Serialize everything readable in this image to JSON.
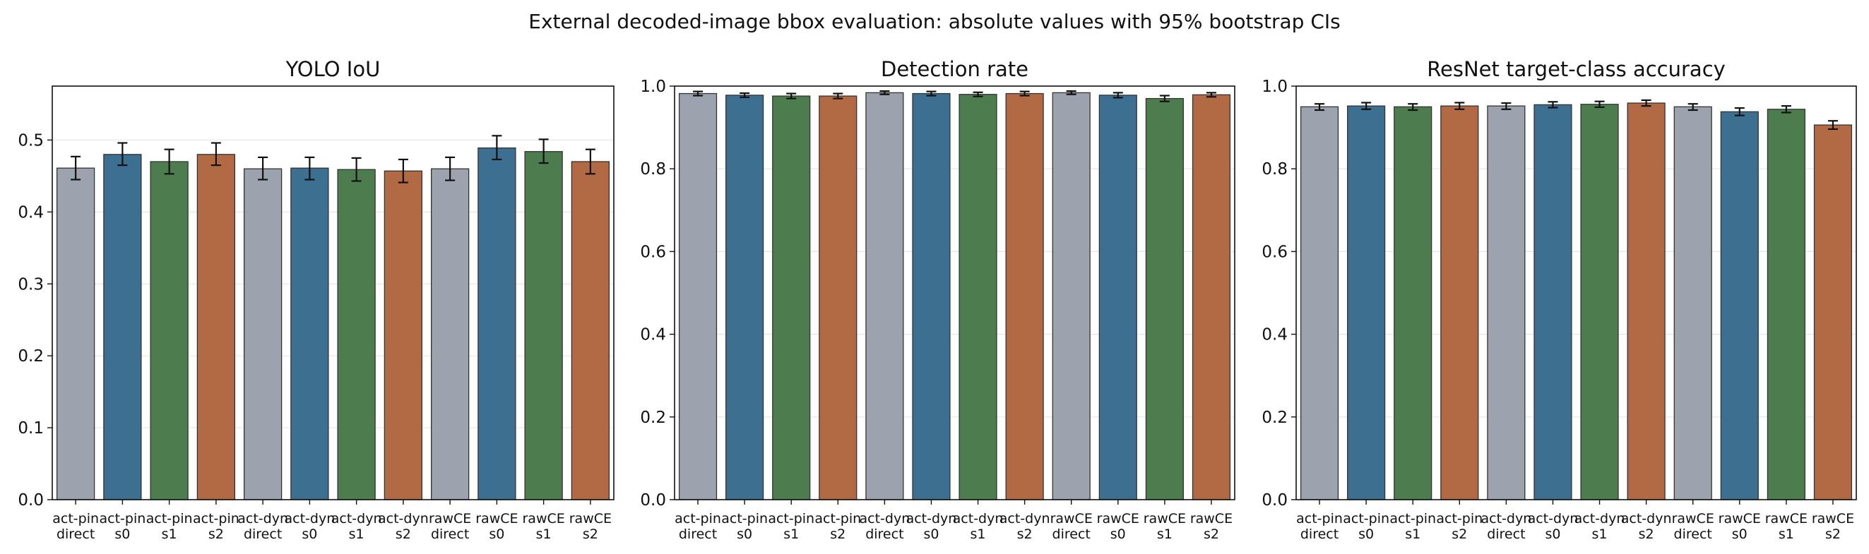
{
  "figure": {
    "suptitle": "External decoded-image bbox evaluation: absolute values with 95% bootstrap CIs"
  },
  "chart_data": [
    {
      "type": "bar",
      "title": "YOLO IoU",
      "xlabel": "",
      "ylabel": "",
      "categories": [
        "act-pin direct",
        "act-pin s0",
        "act-pin s1",
        "act-pin s2",
        "act-dyn direct",
        "act-dyn s0",
        "act-dyn s1",
        "act-dyn s2",
        "rawCE direct",
        "rawCE s0",
        "rawCE s1",
        "rawCE s2"
      ],
      "tick_labels": [
        [
          "act-pin",
          "direct"
        ],
        [
          "act-pin",
          "s0"
        ],
        [
          "act-pin",
          "s1"
        ],
        [
          "act-pin",
          "s2"
        ],
        [
          "act-dyn",
          "direct"
        ],
        [
          "act-dyn",
          "s0"
        ],
        [
          "act-dyn",
          "s1"
        ],
        [
          "act-dyn",
          "s2"
        ],
        [
          "rawCE",
          "direct"
        ],
        [
          "rawCE",
          "s0"
        ],
        [
          "rawCE",
          "s1"
        ],
        [
          "rawCE",
          "s2"
        ]
      ],
      "values": [
        0.461,
        0.48,
        0.47,
        0.48,
        0.46,
        0.461,
        0.459,
        0.457,
        0.46,
        0.489,
        0.484,
        0.47
      ],
      "ci_low": [
        0.445,
        0.465,
        0.453,
        0.465,
        0.445,
        0.445,
        0.443,
        0.441,
        0.444,
        0.473,
        0.468,
        0.453
      ],
      "ci_high": [
        0.477,
        0.496,
        0.487,
        0.496,
        0.476,
        0.476,
        0.475,
        0.473,
        0.476,
        0.506,
        0.501,
        0.487
      ],
      "colors": [
        "#9ca3ae",
        "#3d6f91",
        "#4d7d4f",
        "#b26a45",
        "#9ca3ae",
        "#3d6f91",
        "#4d7d4f",
        "#b26a45",
        "#9ca3ae",
        "#3d6f91",
        "#4d7d4f",
        "#b26a45"
      ],
      "ylim": [
        0,
        0.575
      ],
      "yticks": [
        0.0,
        0.1,
        0.2,
        0.3,
        0.4,
        0.5
      ],
      "ytick_labels": [
        "0.0",
        "0.1",
        "0.2",
        "0.3",
        "0.4",
        "0.5"
      ],
      "grid": "y"
    },
    {
      "type": "bar",
      "title": "Detection rate",
      "xlabel": "",
      "ylabel": "",
      "categories": [
        "act-pin direct",
        "act-pin s0",
        "act-pin s1",
        "act-pin s2",
        "act-dyn direct",
        "act-dyn s0",
        "act-dyn s1",
        "act-dyn s2",
        "rawCE direct",
        "rawCE s0",
        "rawCE s1",
        "rawCE s2"
      ],
      "tick_labels": [
        [
          "act-pin",
          "direct"
        ],
        [
          "act-pin",
          "s0"
        ],
        [
          "act-pin",
          "s1"
        ],
        [
          "act-pin",
          "s2"
        ],
        [
          "act-dyn",
          "direct"
        ],
        [
          "act-dyn",
          "s0"
        ],
        [
          "act-dyn",
          "s1"
        ],
        [
          "act-dyn",
          "s2"
        ],
        [
          "rawCE",
          "direct"
        ],
        [
          "rawCE",
          "s0"
        ],
        [
          "rawCE",
          "s1"
        ],
        [
          "rawCE",
          "s2"
        ]
      ],
      "values": [
        0.982,
        0.978,
        0.976,
        0.976,
        0.984,
        0.982,
        0.98,
        0.982,
        0.984,
        0.978,
        0.97,
        0.979
      ],
      "ci_low": [
        0.977,
        0.973,
        0.97,
        0.97,
        0.98,
        0.977,
        0.975,
        0.977,
        0.98,
        0.972,
        0.963,
        0.974
      ],
      "ci_high": [
        0.987,
        0.983,
        0.982,
        0.982,
        0.988,
        0.987,
        0.985,
        0.987,
        0.988,
        0.984,
        0.977,
        0.984
      ],
      "colors": [
        "#9ca3ae",
        "#3d6f91",
        "#4d7d4f",
        "#b26a45",
        "#9ca3ae",
        "#3d6f91",
        "#4d7d4f",
        "#b26a45",
        "#9ca3ae",
        "#3d6f91",
        "#4d7d4f",
        "#b26a45"
      ],
      "ylim": [
        0,
        1.0
      ],
      "yticks": [
        0.0,
        0.2,
        0.4,
        0.6,
        0.8,
        1.0
      ],
      "ytick_labels": [
        "0.0",
        "0.2",
        "0.4",
        "0.6",
        "0.8",
        "1.0"
      ],
      "grid": "y"
    },
    {
      "type": "bar",
      "title": "ResNet target-class accuracy",
      "xlabel": "",
      "ylabel": "",
      "categories": [
        "act-pin direct",
        "act-pin s0",
        "act-pin s1",
        "act-pin s2",
        "act-dyn direct",
        "act-dyn s0",
        "act-dyn s1",
        "act-dyn s2",
        "rawCE direct",
        "rawCE s0",
        "rawCE s1",
        "rawCE s2"
      ],
      "tick_labels": [
        [
          "act-pin",
          "direct"
        ],
        [
          "act-pin",
          "s0"
        ],
        [
          "act-pin",
          "s1"
        ],
        [
          "act-pin",
          "s2"
        ],
        [
          "act-dyn",
          "direct"
        ],
        [
          "act-dyn",
          "s0"
        ],
        [
          "act-dyn",
          "s1"
        ],
        [
          "act-dyn",
          "s2"
        ],
        [
          "rawCE",
          "direct"
        ],
        [
          "rawCE",
          "s0"
        ],
        [
          "rawCE",
          "s1"
        ],
        [
          "rawCE",
          "s2"
        ]
      ],
      "values": [
        0.95,
        0.952,
        0.95,
        0.952,
        0.952,
        0.955,
        0.956,
        0.959,
        0.95,
        0.938,
        0.944,
        0.906
      ],
      "ci_low": [
        0.942,
        0.944,
        0.942,
        0.944,
        0.944,
        0.948,
        0.949,
        0.952,
        0.942,
        0.929,
        0.936,
        0.896
      ],
      "ci_high": [
        0.957,
        0.96,
        0.957,
        0.96,
        0.959,
        0.962,
        0.963,
        0.966,
        0.957,
        0.947,
        0.952,
        0.916
      ],
      "colors": [
        "#9ca3ae",
        "#3d6f91",
        "#4d7d4f",
        "#b26a45",
        "#9ca3ae",
        "#3d6f91",
        "#4d7d4f",
        "#b26a45",
        "#9ca3ae",
        "#3d6f91",
        "#4d7d4f",
        "#b26a45"
      ],
      "ylim": [
        0,
        1.0
      ],
      "yticks": [
        0.0,
        0.2,
        0.4,
        0.6,
        0.8,
        1.0
      ],
      "ytick_labels": [
        "0.0",
        "0.2",
        "0.4",
        "0.6",
        "0.8",
        "1.0"
      ],
      "grid": "y"
    }
  ]
}
